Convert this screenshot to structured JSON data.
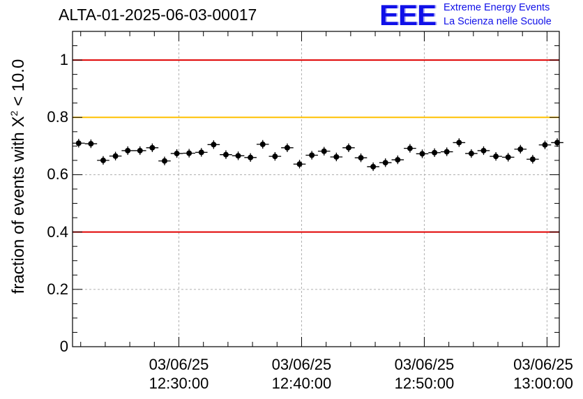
{
  "header": {
    "title": "ALTA-01-2025-06-03-00017"
  },
  "logo": {
    "mark": "EEE",
    "line1": "Extreme Energy Events",
    "line2": "La Scienza nelle Scuole",
    "color": "#1010e8"
  },
  "chart_data": {
    "type": "scatter",
    "title": "ALTA-01-2025-06-03-00017",
    "ylabel_text": "fraction of events with X",
    "ylabel_sup": "2",
    "ylabel_suffix": " < 10.0",
    "xlabel": "",
    "x_axis": "time",
    "x_start": "12:21:20",
    "x_end": "13:01:00",
    "ylim": [
      0,
      1.1
    ],
    "yticks": [
      "0",
      "0.2",
      "0.4",
      "0.6",
      "0.8",
      "1"
    ],
    "ytick_values": [
      0,
      0.2,
      0.4,
      0.6,
      0.8,
      1.0
    ],
    "xticks": [
      {
        "date": "03/06/25",
        "time": "12:30:00"
      },
      {
        "date": "03/06/25",
        "time": "12:40:00"
      },
      {
        "date": "03/06/25",
        "time": "12:50:00"
      },
      {
        "date": "03/06/25",
        "time": "13:00:00"
      }
    ],
    "grid": true,
    "reference_lines": [
      {
        "y": 1.0,
        "color": "#e00000"
      },
      {
        "y": 0.8,
        "color": "#ffc000"
      },
      {
        "y": 0.4,
        "color": "#e00000"
      }
    ],
    "series": [
      {
        "marker_color": "#000000",
        "x": [
          "12:21:50",
          "12:22:50",
          "12:23:50",
          "12:24:50",
          "12:25:50",
          "12:26:50",
          "12:27:50",
          "12:28:50",
          "12:29:50",
          "12:30:50",
          "12:31:50",
          "12:32:50",
          "12:33:50",
          "12:34:50",
          "12:35:50",
          "12:36:50",
          "12:37:50",
          "12:38:50",
          "12:39:50",
          "12:40:50",
          "12:41:50",
          "12:42:50",
          "12:43:50",
          "12:44:50",
          "12:45:50",
          "12:46:50",
          "12:47:50",
          "12:48:50",
          "12:49:50",
          "12:50:50",
          "12:51:50",
          "12:52:50",
          "12:53:50",
          "12:54:50",
          "12:55:50",
          "12:56:50",
          "12:57:50",
          "12:58:50",
          "12:59:50",
          "13:00:50"
        ],
        "values": [
          0.71,
          0.708,
          0.65,
          0.665,
          0.684,
          0.684,
          0.694,
          0.648,
          0.674,
          0.675,
          0.678,
          0.705,
          0.67,
          0.666,
          0.66,
          0.706,
          0.664,
          0.694,
          0.637,
          0.668,
          0.682,
          0.662,
          0.694,
          0.659,
          0.628,
          0.642,
          0.652,
          0.692,
          0.673,
          0.677,
          0.68,
          0.712,
          0.674,
          0.684,
          0.664,
          0.661,
          0.689,
          0.654,
          0.704,
          0.712
        ],
        "errors": [
          0.015,
          0.015,
          0.015,
          0.015,
          0.015,
          0.015,
          0.015,
          0.015,
          0.015,
          0.015,
          0.015,
          0.015,
          0.015,
          0.015,
          0.015,
          0.015,
          0.015,
          0.015,
          0.015,
          0.015,
          0.015,
          0.015,
          0.015,
          0.015,
          0.015,
          0.015,
          0.015,
          0.015,
          0.015,
          0.015,
          0.015,
          0.015,
          0.015,
          0.015,
          0.015,
          0.015,
          0.015,
          0.015,
          0.015,
          0.015
        ],
        "x_half_width_seconds": 30
      }
    ]
  }
}
